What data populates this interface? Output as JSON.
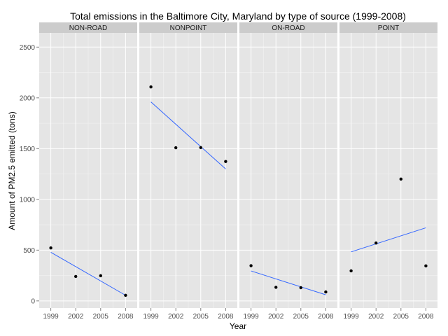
{
  "chart_data": {
    "type": "scatter",
    "title": "Total emissions in the Baltimore City, Maryland by type of source (1999-2008)",
    "xlabel": "Year",
    "ylabel": "Amount of PM2.5 emitted (tons)",
    "x": [
      1999,
      2002,
      2005,
      2008
    ],
    "x_ticks": [
      "1999",
      "2002",
      "2005",
      "2008"
    ],
    "y_ticks": [
      "0",
      "500",
      "1000",
      "1500",
      "2000",
      "2500"
    ],
    "ylim": [
      -70,
      2640
    ],
    "xlim": [
      1997.6,
      2009.4
    ],
    "grid": true,
    "trend_line_color": "#3366ff",
    "point_color": "#000000",
    "panels": [
      {
        "name": "NON-ROAD",
        "values": [
          522,
          241,
          248,
          55
        ],
        "fit": [
          479,
          55
        ]
      },
      {
        "name": "NONPOINT",
        "values": [
          2108,
          1509,
          1510,
          1373
        ],
        "fit": [
          1960,
          1300
        ]
      },
      {
        "name": "ON-ROAD",
        "values": [
          347,
          134,
          130,
          88
        ],
        "fit": [
          295,
          60
        ]
      },
      {
        "name": "POINT",
        "values": [
          296,
          570,
          1200,
          345
        ],
        "fit": [
          483,
          720
        ]
      }
    ]
  }
}
